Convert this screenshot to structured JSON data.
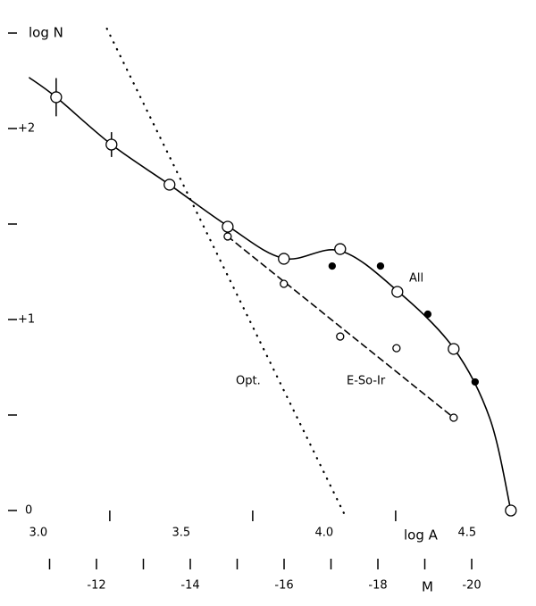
{
  "chart_data": {
    "type": "scatter",
    "xlabel": "log A",
    "ylabel": "log N",
    "x2label": "M",
    "xlim": [
      2.866,
      4.741
    ],
    "ylim": [
      -0.5,
      2.673
    ],
    "x2lim": [
      -9.943,
      -21.371
    ],
    "xticks": [
      {
        "value": 3,
        "label": "3.0"
      },
      3.5,
      {
        "value": 4,
        "label": "4.0"
      },
      4.5
    ],
    "xticks_minor": [
      3.25,
      3.75,
      4.25
    ],
    "yticks": [
      0,
      {
        "value": 1,
        "label": "+1"
      },
      {
        "value": 2,
        "label": "+2"
      }
    ],
    "yticks_minor": [
      0.5,
      1.5,
      2.5
    ],
    "x2ticks": [
      -12,
      -14,
      -16,
      -18,
      -20
    ],
    "x2ticks_minor": [
      -11,
      -13,
      -15,
      -17,
      -19
    ],
    "series": [
      {
        "name": "All",
        "marker": "open",
        "color": "#000000",
        "x": [
          3.0625,
          3.256,
          3.459,
          3.6625,
          3.859,
          4.056,
          4.256,
          4.453,
          4.653
        ],
        "values": [
          2.164,
          1.916,
          1.706,
          1.486,
          1.318,
          1.369,
          1.145,
          0.846,
          0.0
        ],
        "errors": [
          0.1,
          0.065,
          0.03,
          null,
          null,
          null,
          null,
          null,
          null
        ]
      },
      {
        "marker": "filled",
        "color": "#000000",
        "x": [
          4.028,
          4.197,
          4.3625,
          4.528
        ],
        "values": [
          1.28,
          1.28,
          1.028,
          0.673
        ]
      },
      {
        "name": "E-So-Ir",
        "marker": "small-open",
        "color": "#000000",
        "x": [
          3.6625,
          3.859,
          4.056,
          4.253,
          4.453
        ],
        "values": [
          1.435,
          1.187,
          0.911,
          0.85,
          0.486
        ]
      }
    ],
    "fits": [
      {
        "style": "solid",
        "x": [
          2.969,
          3.0625,
          3.256,
          3.459,
          3.6625,
          3.859,
          4.056,
          4.256,
          4.453,
          4.58,
          4.653
        ],
        "values": [
          2.266,
          2.164,
          1.916,
          1.706,
          1.49,
          1.32,
          1.36,
          1.15,
          0.85,
          0.48,
          0.0
        ]
      },
      {
        "style": "dashed",
        "x": [
          3.6625,
          4.453
        ],
        "values": [
          1.435,
          0.486
        ]
      },
      {
        "name": "Opt.",
        "style": "dotted",
        "x": [
          3.24,
          4.069
        ],
        "values": [
          2.523,
          -0.014
        ]
      }
    ]
  }
}
